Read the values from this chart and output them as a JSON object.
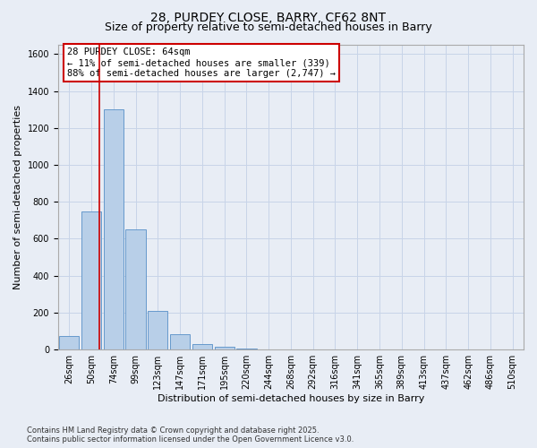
{
  "title_line1": "28, PURDEY CLOSE, BARRY, CF62 8NT",
  "title_line2": "Size of property relative to semi-detached houses in Barry",
  "xlabel": "Distribution of semi-detached houses by size in Barry",
  "ylabel": "Number of semi-detached properties",
  "categories": [
    "26sqm",
    "50sqm",
    "74sqm",
    "99sqm",
    "123sqm",
    "147sqm",
    "171sqm",
    "195sqm",
    "220sqm",
    "244sqm",
    "268sqm",
    "292sqm",
    "316sqm",
    "341sqm",
    "365sqm",
    "389sqm",
    "413sqm",
    "437sqm",
    "462sqm",
    "486sqm",
    "510sqm"
  ],
  "values": [
    75,
    750,
    1300,
    650,
    210,
    85,
    30,
    15,
    5,
    2,
    0,
    0,
    0,
    0,
    0,
    0,
    0,
    0,
    0,
    0,
    0
  ],
  "bar_color": "#b8cfe8",
  "bar_edge_color": "#6699cc",
  "vline_x_data": 1.35,
  "vline_color": "#cc0000",
  "annotation_text": "28 PURDEY CLOSE: 64sqm\n← 11% of semi-detached houses are smaller (339)\n88% of semi-detached houses are larger (2,747) →",
  "annotation_box_facecolor": "#ffffff",
  "annotation_box_edgecolor": "#cc0000",
  "ylim": [
    0,
    1650
  ],
  "yticks": [
    0,
    200,
    400,
    600,
    800,
    1000,
    1200,
    1400,
    1600
  ],
  "grid_color": "#c8d4e8",
  "background_color": "#e8edf5",
  "plot_background": "#e8edf5",
  "footnote": "Contains HM Land Registry data © Crown copyright and database right 2025.\nContains public sector information licensed under the Open Government Licence v3.0.",
  "title_fontsize": 10,
  "subtitle_fontsize": 9,
  "axis_label_fontsize": 8,
  "tick_fontsize": 7,
  "annotation_fontsize": 7.5
}
